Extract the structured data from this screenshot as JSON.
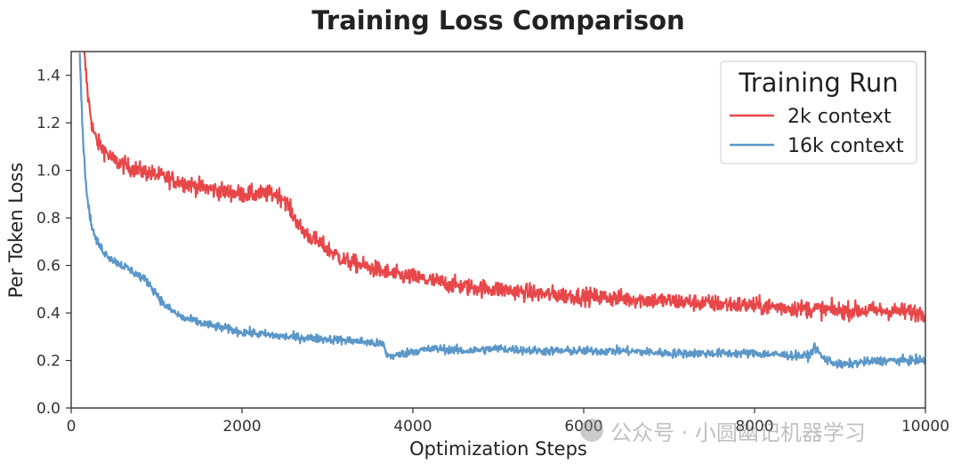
{
  "chart_data": {
    "type": "line",
    "title": "Training Loss Comparison",
    "xlabel": "Optimization Steps",
    "ylabel": "Per Token Loss",
    "xlim": [
      0,
      10000
    ],
    "ylim": [
      0,
      1.5
    ],
    "xticks": [
      0,
      2000,
      4000,
      6000,
      8000,
      10000
    ],
    "yticks": [
      0.0,
      0.2,
      0.4,
      0.6,
      0.8,
      1.0,
      1.2,
      1.4
    ],
    "grid": false,
    "legend": {
      "title": "Training Run",
      "position": "top-right"
    },
    "series": [
      {
        "name": "2k context",
        "color": "#e8474a",
        "noise": 0.018,
        "x": [
          150,
          200,
          250,
          300,
          400,
          500,
          700,
          900,
          1100,
          1300,
          1500,
          1800,
          2000,
          2200,
          2400,
          2500,
          2600,
          2700,
          2800,
          3000,
          3200,
          3500,
          3800,
          4000,
          4300,
          4600,
          5000,
          5500,
          6000,
          6500,
          7000,
          7500,
          8000,
          8500,
          9000,
          9500,
          10000
        ],
        "y": [
          1.5,
          1.3,
          1.18,
          1.12,
          1.08,
          1.04,
          1.01,
          0.99,
          0.97,
          0.95,
          0.93,
          0.91,
          0.9,
          0.9,
          0.9,
          0.88,
          0.81,
          0.75,
          0.72,
          0.67,
          0.62,
          0.59,
          0.56,
          0.55,
          0.53,
          0.51,
          0.5,
          0.48,
          0.47,
          0.46,
          0.45,
          0.44,
          0.43,
          0.42,
          0.41,
          0.41,
          0.4
        ]
      },
      {
        "name": "16k context",
        "color": "#5b97c8",
        "noise": 0.009,
        "x": [
          100,
          130,
          160,
          200,
          250,
          300,
          400,
          500,
          700,
          900,
          1000,
          1100,
          1300,
          1600,
          2000,
          2500,
          3000,
          3400,
          3600,
          3650,
          3700,
          3800,
          4000,
          4300,
          4600,
          5000,
          5500,
          6000,
          6500,
          7000,
          7500,
          8000,
          8500,
          8650,
          8700,
          8800,
          9000,
          9200,
          9500,
          10000
        ],
        "y": [
          1.5,
          1.2,
          1.0,
          0.85,
          0.75,
          0.7,
          0.65,
          0.62,
          0.58,
          0.53,
          0.48,
          0.43,
          0.38,
          0.35,
          0.32,
          0.3,
          0.29,
          0.28,
          0.27,
          0.27,
          0.22,
          0.22,
          0.24,
          0.25,
          0.24,
          0.25,
          0.24,
          0.24,
          0.24,
          0.23,
          0.23,
          0.23,
          0.22,
          0.22,
          0.26,
          0.21,
          0.18,
          0.19,
          0.2,
          0.2
        ]
      }
    ]
  },
  "watermark": {
    "text": "公众号 · 小圆幽记机器学习"
  }
}
